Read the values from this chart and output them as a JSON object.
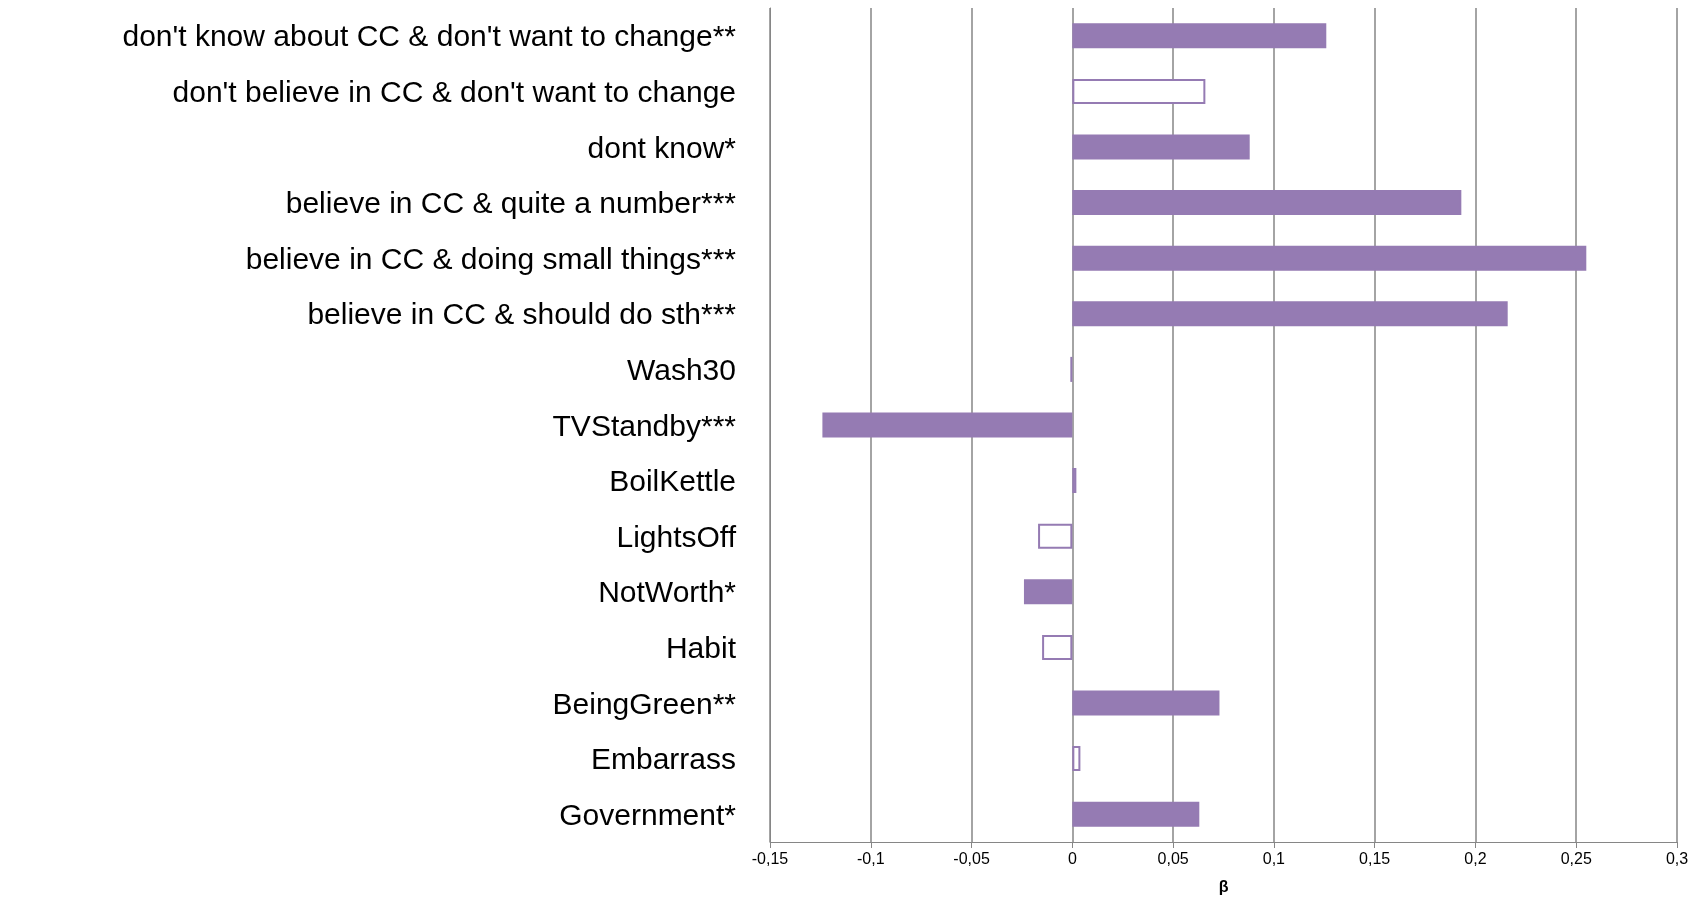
{
  "chart_data": {
    "type": "bar",
    "orientation": "horizontal",
    "stacked": true,
    "xlabel": "β",
    "categories": [
      "don't know about CC & don't want to change**",
      "don't believe in CC & don't want to change",
      "dont know*",
      "believe in CC & quite a number***",
      "believe in CC & doing small things***",
      "believe in CC & should do sth***",
      "Wash30",
      "TVStandby***",
      "BoilKettle",
      "LightsOff",
      "NotWorth*",
      "Habit",
      "BeingGreen**",
      "Embarrass",
      "Government*"
    ],
    "series": [
      {
        "color": "#957bb3",
        "values": [
          0.126,
          null,
          0.088,
          0.193,
          0.255,
          0.216,
          -0.001,
          -0.124,
          null,
          null,
          -0.024,
          null,
          0.073,
          null,
          0.063
        ]
      },
      {
        "color": "#ffffff",
        "values": [
          null,
          0.066,
          null,
          null,
          null,
          null,
          null,
          null,
          0.002,
          -0.017,
          null,
          -0.015,
          null,
          0.004,
          null
        ]
      }
    ],
    "xlim": [
      -0.15,
      0.3
    ],
    "xticks": [
      {
        "value": -0.15,
        "label": "-0,15"
      },
      {
        "value": -0.1,
        "label": "-0,1"
      },
      {
        "value": -0.05,
        "label": "-0,05"
      },
      0,
      {
        "value": 0.05,
        "label": "0,05"
      },
      {
        "value": 0.1,
        "label": "0,1"
      },
      {
        "value": 0.15,
        "label": "0,15"
      },
      {
        "value": 0.2,
        "label": "0,2"
      },
      {
        "value": 0.25,
        "label": "0,25"
      },
      {
        "value": 0.3,
        "label": "0,3"
      }
    ],
    "grid": "x"
  }
}
